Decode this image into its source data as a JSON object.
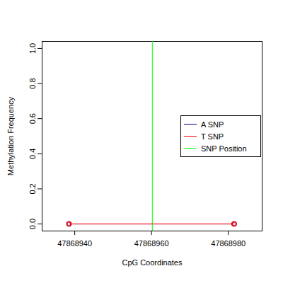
{
  "chart_data": {
    "type": "line",
    "x_label": "CpG Coordinates",
    "y_label": "Methylation Frequency",
    "x": [
      47868938.5,
      47868981.5
    ],
    "series": [
      {
        "name": "A SNP",
        "color": "#000099",
        "values": [
          0,
          0
        ],
        "marker": "circle"
      },
      {
        "name": "T SNP",
        "color": "#ff0000",
        "values": [
          0,
          0
        ],
        "marker": "circle"
      }
    ],
    "snp_position": {
      "name": "SNP Position",
      "value": 47868960.2,
      "color": "#00ff00"
    },
    "xlim": [
      47868931.5,
      47868988.8
    ],
    "xticks": [
      47868940,
      47868960,
      47868980
    ],
    "ylim": [
      -0.04,
      1.04
    ],
    "yticks": [
      {
        "value": 0,
        "label": "0.0"
      },
      0.2,
      0.4,
      0.6,
      0.8,
      {
        "value": 1,
        "label": "1.0"
      }
    ],
    "legend": "right"
  }
}
